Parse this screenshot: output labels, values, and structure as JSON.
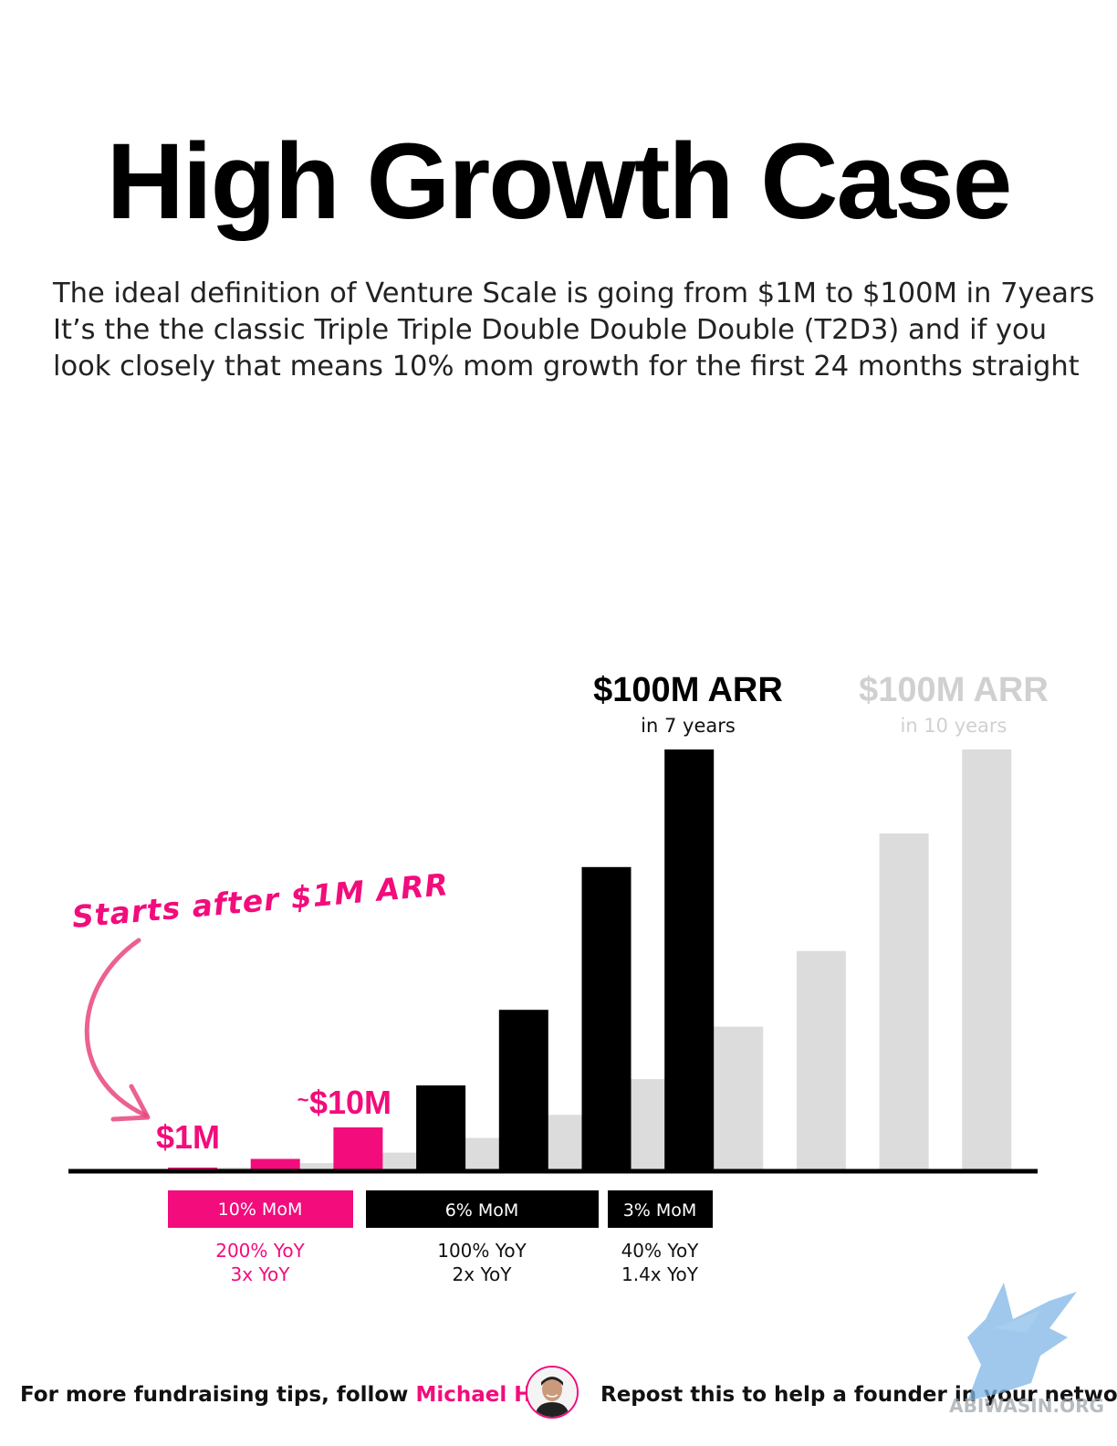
{
  "title": "High Growth Case",
  "subtitle_lines": [
    "The ideal definition of Venture Scale is going from $1M to $100M in 7years",
    "It’s the the classic Triple Triple Double Double Double (T2D3) and if you",
    "look closely that means 10% mom growth for the first 24 months straight"
  ],
  "colors": {
    "pink": "#f20c7c",
    "black": "#000000",
    "grey": "#dcdcdc",
    "text_grey": "#d0d0d0"
  },
  "chart_data": {
    "type": "bar",
    "title": "",
    "xlabel": "",
    "ylabel": "",
    "ylim": [
      0,
      100
    ],
    "units": "$M ARR",
    "series": [
      {
        "name": "$100M ARR in 7 years",
        "values": [
          0.4,
          2.5,
          10,
          20,
          38,
          72,
          100
        ],
        "colors": [
          "#f20c7c",
          "#f20c7c",
          "#f20c7c",
          "#000000",
          "#000000",
          "#000000",
          "#000000"
        ]
      },
      {
        "name": "$100M ARR in 10 years",
        "values": [
          0.4,
          1.5,
          4,
          7.5,
          13,
          21.5,
          34,
          52,
          80,
          100
        ],
        "colors": [
          "#dcdcdc",
          "#dcdcdc",
          "#dcdcdc",
          "#dcdcdc",
          "#dcdcdc",
          "#dcdcdc",
          "#dcdcdc",
          "#dcdcdc",
          "#dcdcdc",
          "#dcdcdc"
        ]
      }
    ],
    "value_labels": {
      "one_m": "$1M",
      "ten_m_tilde": "~",
      "ten_m": "$10M"
    },
    "top_labels": [
      {
        "title": "$100M ARR",
        "sub": "in 7 years",
        "color": "#000000"
      },
      {
        "title": "$100M ARR",
        "sub": "in 10 years",
        "color": "#d0d0d0"
      }
    ],
    "annotation": "Starts after $1M ARR",
    "growth_bands": [
      {
        "label": "10% MoM",
        "yoy": [
          "200% YoY",
          "3x YoY"
        ],
        "fill": "#f20c7c",
        "text_color": "#f20c7c"
      },
      {
        "label": "6% MoM",
        "yoy": [
          "100% YoY",
          "2x YoY"
        ],
        "fill": "#000000",
        "text_color": "#111111"
      },
      {
        "label": "3% MoM",
        "yoy": [
          "40% YoY",
          "1.4x YoY"
        ],
        "fill": "#000000",
        "text_color": "#111111"
      }
    ]
  },
  "footer": {
    "left_prefix": "For more fundraising tips, follow ",
    "left_name": "Michael Ho",
    "right_prefix": "Repost",
    "right_rest": " this to help a founder in your network"
  },
  "watermark_text": "ABIWASIN.ORG"
}
